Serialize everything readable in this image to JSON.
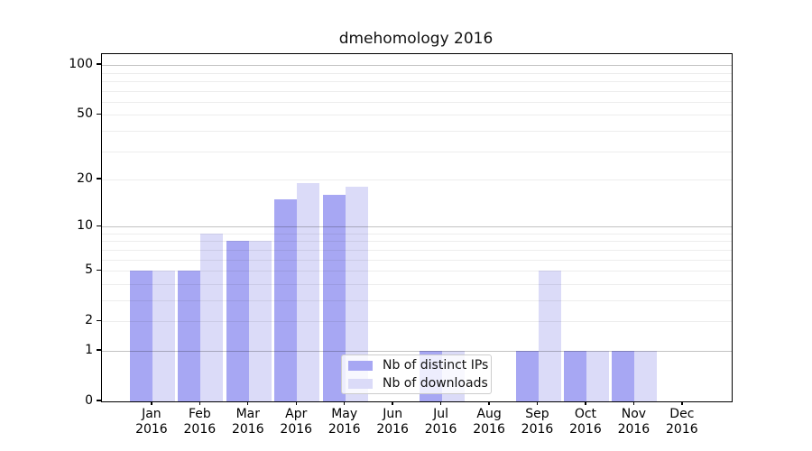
{
  "chart_data": {
    "type": "bar",
    "title": "dmehomology 2016",
    "categories": [
      "Jan",
      "Feb",
      "Mar",
      "Apr",
      "May",
      "Jun",
      "Jul",
      "Aug",
      "Sep",
      "Oct",
      "Nov",
      "Dec"
    ],
    "category_year": "2016",
    "series": [
      {
        "name": "Nb of distinct IPs",
        "color": "#a7a7f3",
        "values": [
          5,
          5,
          8,
          15,
          16,
          0,
          1,
          0,
          1,
          1,
          1,
          0
        ]
      },
      {
        "name": "Nb of downloads",
        "color": "#dbdbf8",
        "values": [
          5,
          9,
          8,
          19,
          18,
          0,
          1,
          0,
          5,
          1,
          1,
          0
        ]
      }
    ],
    "y_axis": {
      "scale": "log1p",
      "tick_labels": [
        0,
        1,
        2,
        5,
        10,
        20,
        50,
        100
      ],
      "major_gridlines": [
        1,
        10,
        100
      ],
      "minor_gridlines": [
        2,
        3,
        4,
        5,
        6,
        7,
        8,
        9,
        20,
        30,
        40,
        50,
        60,
        70,
        80,
        90
      ],
      "range_top": 118
    },
    "legend": {
      "location": "lower center",
      "entries": [
        "Nb of distinct IPs",
        "Nb of downloads"
      ]
    }
  }
}
